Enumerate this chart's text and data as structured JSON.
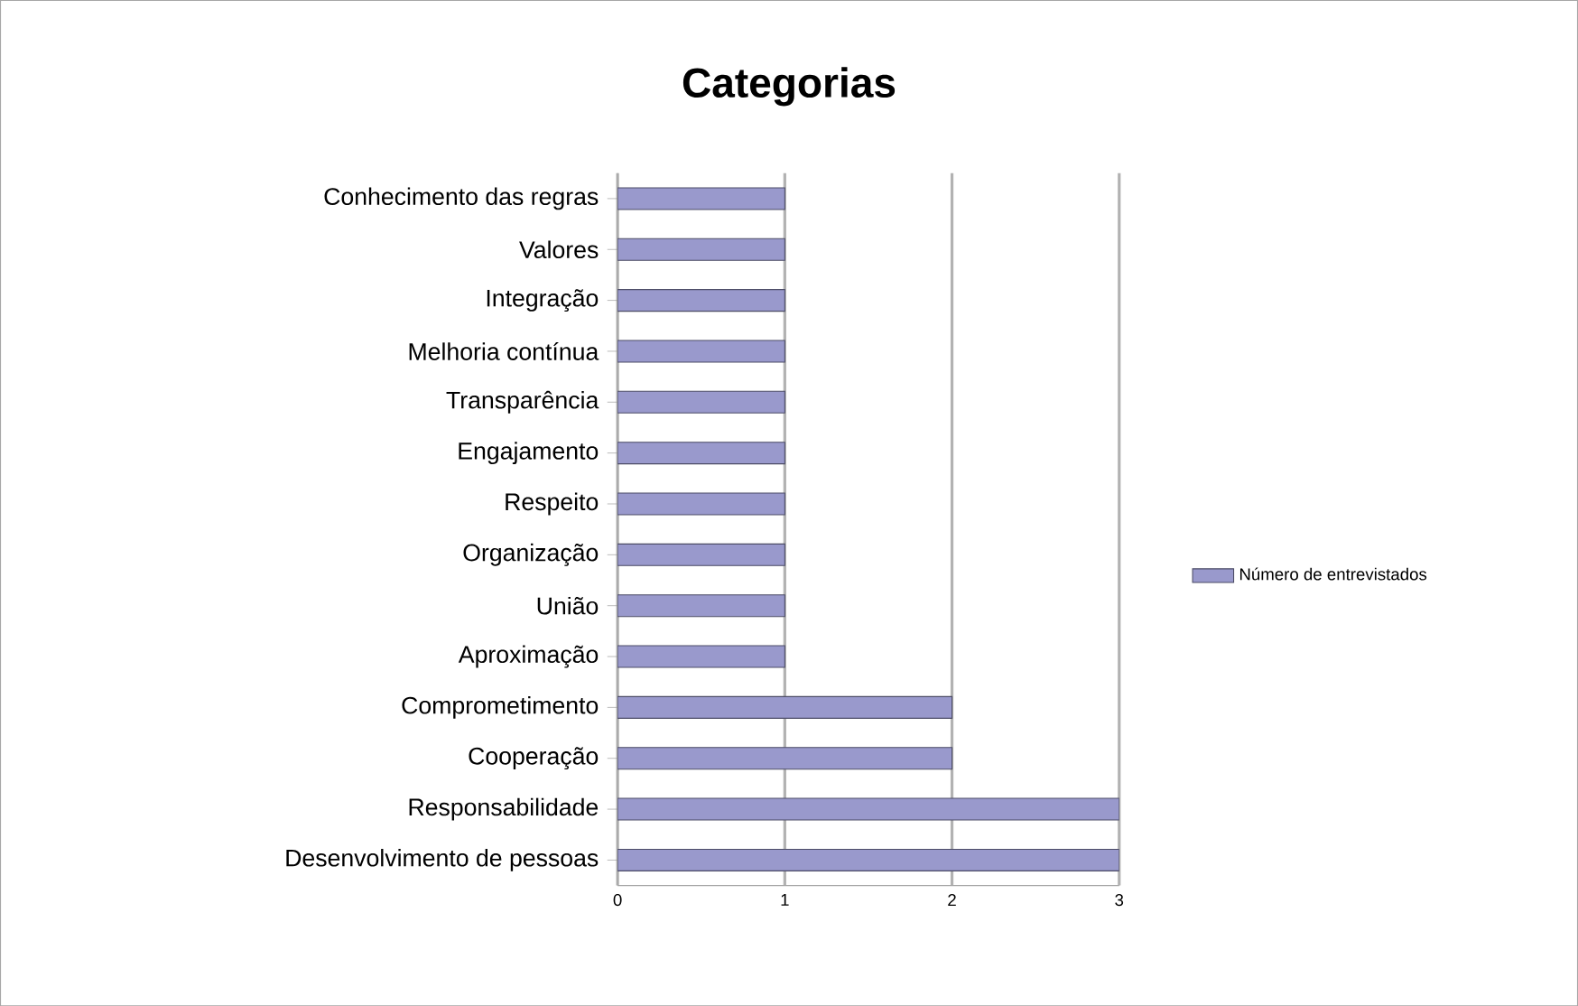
{
  "chart_data": {
    "type": "bar",
    "orientation": "horizontal",
    "title": "Categorias",
    "categories": [
      "Conhecimento das regras",
      "Valores",
      "Integração",
      "Melhoria contínua",
      "Transparência",
      "Engajamento",
      "Respeito",
      "Organização",
      "União",
      "Aproximação",
      "Comprometimento",
      "Cooperação",
      "Responsabilidade",
      "Desenvolvimento de pessoas"
    ],
    "series": [
      {
        "name": "Número de entrevistados",
        "color": "#9999cc",
        "values": [
          1,
          1,
          1,
          1,
          1,
          1,
          1,
          1,
          1,
          1,
          2,
          2,
          3,
          3
        ]
      }
    ],
    "xlim": [
      0,
      3
    ],
    "xticks": [
      0,
      1,
      2,
      3
    ],
    "grid": "x",
    "legend": "right"
  }
}
